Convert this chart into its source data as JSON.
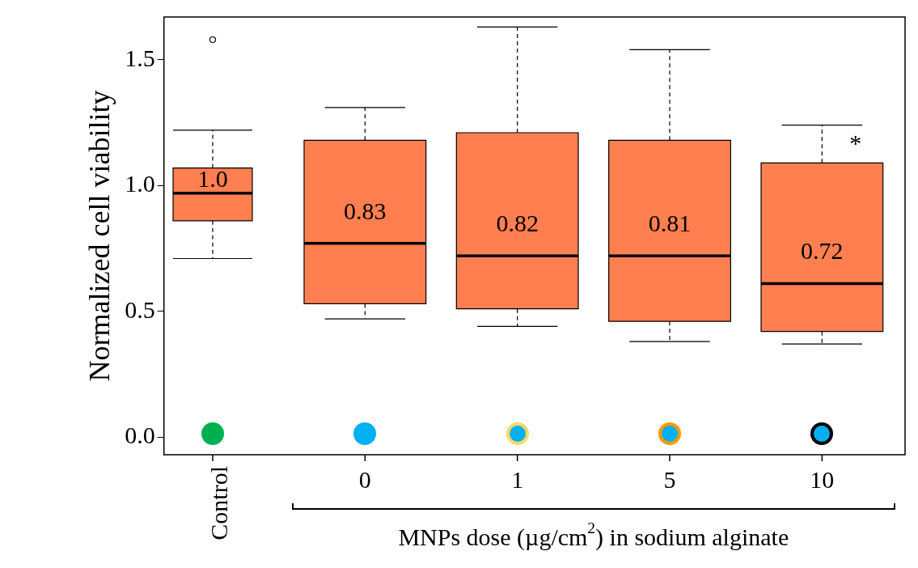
{
  "chart_data": {
    "type": "box",
    "categories": [
      "Control",
      "0",
      "1",
      "5",
      "10"
    ],
    "boxes": [
      {
        "low": 0.71,
        "q1": 0.86,
        "median": 0.97,
        "q3": 1.07,
        "high": 1.22,
        "outliers": [
          1.58
        ]
      },
      {
        "low": 0.47,
        "q1": 0.53,
        "median": 0.77,
        "q3": 1.18,
        "high": 1.31
      },
      {
        "low": 0.44,
        "q1": 0.51,
        "median": 0.72,
        "q3": 1.21,
        "high": 1.63
      },
      {
        "low": 0.38,
        "q1": 0.46,
        "median": 0.72,
        "q3": 1.18,
        "high": 1.54
      },
      {
        "low": 0.37,
        "q1": 0.42,
        "median": 0.61,
        "q3": 1.09,
        "high": 1.24
      }
    ],
    "color": "#ff7f50",
    "ylabel": "Normalized cell viability",
    "xlabel": "MNPs dose (µg/cm$^{2}$) in sodium alginate",
    "ylim": [
      -0.07,
      1.67
    ],
    "yticks": [
      {
        "value": 0,
        "label": "0.0"
      },
      {
        "value": 0.5,
        "label": "0.5"
      },
      {
        "value": 1,
        "label": "1.0"
      },
      {
        "value": 1.5,
        "label": "1.5"
      }
    ],
    "grid": false,
    "annotations": [
      "1.0",
      "0.83",
      "0.82",
      "0.81",
      "0.72",
      "*"
    ]
  }
}
